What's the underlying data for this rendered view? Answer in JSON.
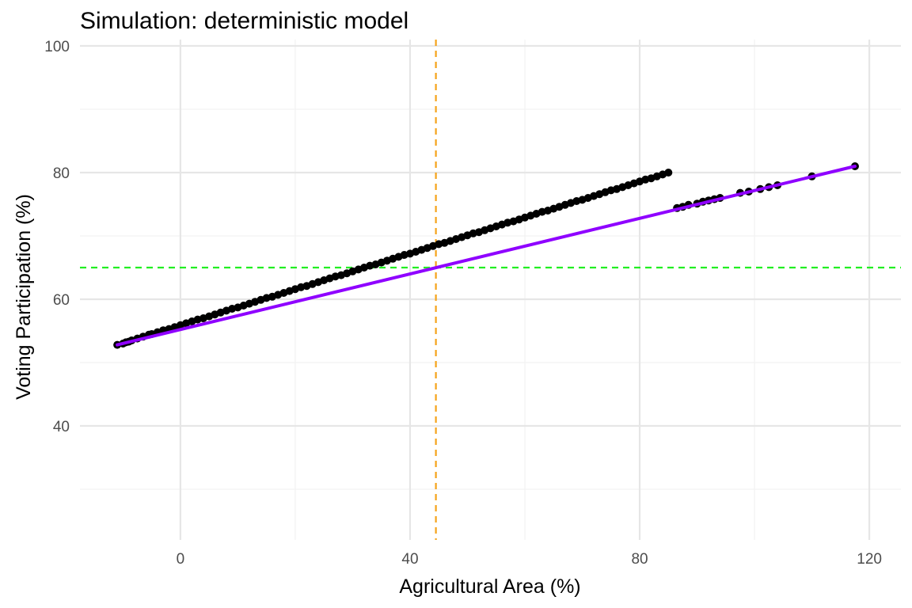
{
  "chart_data": {
    "type": "scatter",
    "title": "Simulation: deterministic model",
    "xlabel": "Agricultural Area (%)",
    "ylabel": "Voting Participation (%)",
    "xlim": [
      -17.5,
      125.5
    ],
    "ylim": [
      22,
      101
    ],
    "x_ticks": [
      0,
      40,
      80,
      120
    ],
    "y_ticks": [
      40,
      60,
      80,
      100
    ],
    "x_minor_ticks": [
      20,
      60,
      100
    ],
    "y_minor_ticks": [
      30,
      50,
      70,
      90
    ],
    "grid": true,
    "points": {
      "color": "#000000",
      "x": [
        -11,
        -10,
        -9.5,
        -9,
        -8.5,
        -7.5,
        -6.5,
        -5.5,
        -5,
        -4,
        -3,
        -2,
        -1,
        0,
        1,
        2,
        3,
        4,
        5,
        6,
        7,
        8,
        9,
        10,
        11,
        12,
        13,
        14,
        15,
        16,
        17,
        18,
        19,
        20,
        21,
        22,
        23,
        24,
        25,
        26,
        27,
        28,
        29,
        30,
        31,
        32,
        33,
        34,
        35,
        36,
        37,
        38,
        39,
        40,
        41,
        42,
        43,
        44,
        45,
        46,
        47,
        48,
        49,
        50,
        51,
        52,
        53,
        54,
        55,
        56,
        57,
        58,
        59,
        60,
        61,
        62,
        63,
        64,
        65,
        66,
        67,
        68,
        69,
        70,
        71,
        72,
        73,
        74,
        75,
        76,
        77,
        78,
        79,
        80,
        81,
        82,
        83,
        84,
        85,
        86.5,
        87.5,
        88.5,
        90,
        91,
        92,
        93,
        94,
        97.5,
        99,
        101,
        102.5,
        104,
        110,
        117.5
      ],
      "y": [
        52.8,
        53.0,
        53.2,
        53.3,
        53.5,
        53.8,
        54.1,
        54.4,
        54.5,
        54.8,
        55.1,
        55.3,
        55.6,
        55.9,
        56.2,
        56.5,
        56.8,
        57.0,
        57.3,
        57.6,
        57.9,
        58.2,
        58.5,
        58.7,
        59.0,
        59.3,
        59.6,
        59.9,
        60.2,
        60.4,
        60.7,
        61.0,
        61.3,
        61.6,
        61.9,
        62.1,
        62.4,
        62.7,
        63.0,
        63.3,
        63.6,
        63.8,
        64.1,
        64.4,
        64.7,
        65.0,
        65.3,
        65.5,
        65.8,
        66.1,
        66.4,
        66.7,
        67.0,
        67.2,
        67.5,
        67.8,
        68.1,
        68.4,
        68.7,
        68.9,
        69.2,
        69.5,
        69.8,
        70.1,
        70.4,
        70.6,
        70.9,
        71.2,
        71.5,
        71.8,
        72.1,
        72.3,
        72.6,
        72.9,
        73.2,
        73.5,
        73.8,
        74.0,
        74.3,
        74.6,
        74.9,
        75.2,
        75.5,
        75.7,
        76.0,
        76.3,
        76.6,
        76.9,
        77.2,
        77.4,
        77.7,
        78.0,
        78.3,
        78.6,
        78.9,
        79.1,
        79.4,
        79.7,
        80.0,
        74.4,
        74.6,
        74.9,
        75.1,
        75.4,
        75.6,
        75.8,
        76.0,
        76.8,
        77.0,
        77.4,
        77.7,
        78.0,
        79.4,
        81.0
      ]
    },
    "fit_line": {
      "color": "#8f00ff",
      "x": [
        -11,
        117.5
      ],
      "y": [
        52.8,
        81.0
      ]
    },
    "reference_lines": {
      "vertical": {
        "x": 44.5,
        "color": "#f5a31a",
        "style": "dashed"
      },
      "horizontal": {
        "y": 65,
        "color": "#22ee22",
        "style": "dashed"
      }
    },
    "colors": {
      "grid_major": "#e6e6e6",
      "grid_minor": "#f2f2f2",
      "tick_text": "#4d4d4d"
    }
  }
}
